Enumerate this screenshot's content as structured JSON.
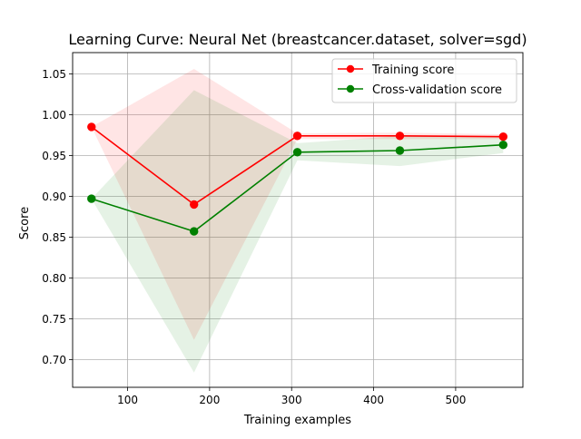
{
  "chart_data": {
    "type": "line",
    "title": "Learning Curve: Neural Net (breastcancer.dataset, solver=sgd)",
    "xlabel": "Training examples",
    "ylabel": "Score",
    "xlim": [
      33,
      582
    ],
    "ylim": [
      0.666,
      1.076
    ],
    "xticks": [
      100,
      200,
      300,
      400,
      500
    ],
    "xtick_labels": [
      "100",
      "200",
      "300",
      "400",
      "500"
    ],
    "yticks": [
      0.7,
      0.75,
      0.8,
      0.85,
      0.9,
      0.95,
      1.0,
      1.05
    ],
    "ytick_labels": [
      "0.70",
      "0.75",
      "0.80",
      "0.85",
      "0.90",
      "0.95",
      "1.00",
      "1.05"
    ],
    "grid": true,
    "legend_position": "upper right",
    "x": [
      56,
      181,
      307,
      432,
      558
    ],
    "series": [
      {
        "name": "Training score",
        "color": "#ff0000",
        "band_color": "#ff0000",
        "values": [
          0.985,
          0.89,
          0.974,
          0.974,
          0.973
        ],
        "lower": [
          0.985,
          0.724,
          0.97,
          0.97,
          0.97
        ],
        "upper": [
          0.985,
          1.056,
          0.977,
          0.978,
          0.976
        ]
      },
      {
        "name": "Cross-validation score",
        "color": "#008000",
        "band_color": "#008000",
        "values": [
          0.897,
          0.857,
          0.954,
          0.956,
          0.963
        ],
        "lower": [
          0.897,
          0.684,
          0.944,
          0.937,
          0.953
        ],
        "upper": [
          0.897,
          1.03,
          0.965,
          0.974,
          0.972
        ]
      }
    ]
  }
}
